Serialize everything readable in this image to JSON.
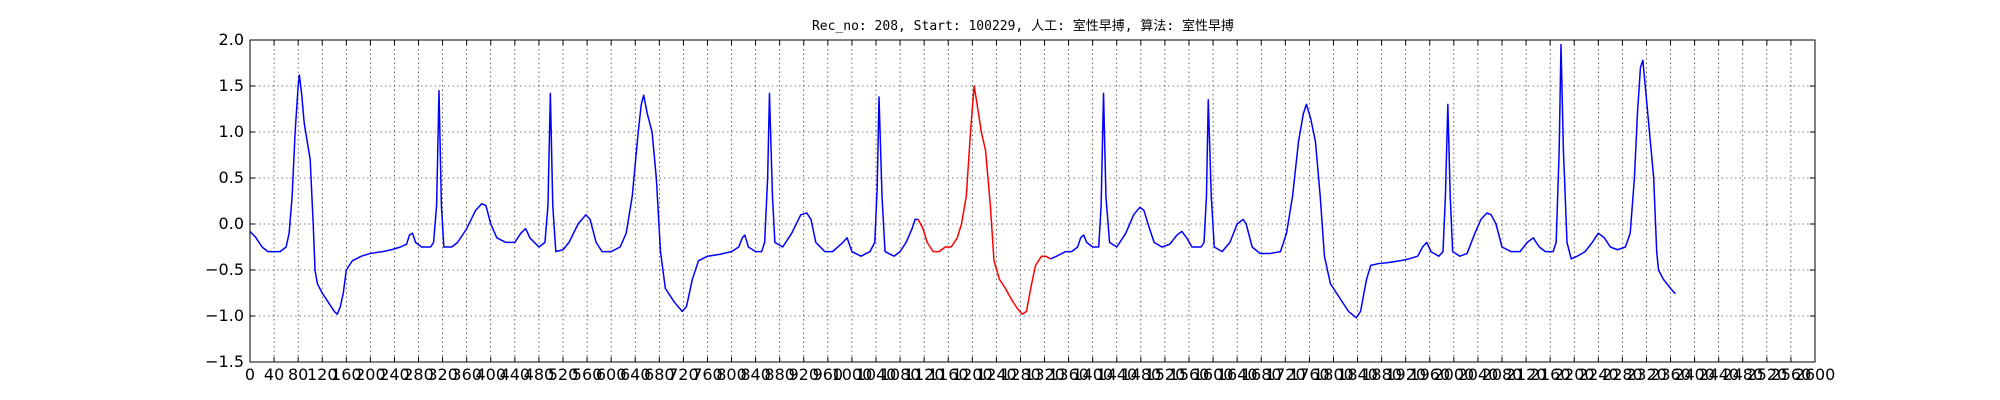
{
  "chart_data": {
    "type": "line",
    "title": "Rec_no: 208, Start: 100229, 人工: 室性早搏, 算法: 室性早搏",
    "xlabel": "",
    "ylabel": "",
    "xlim": [
      0,
      2600
    ],
    "ylim": [
      -1.5,
      2.0
    ],
    "grid": true,
    "x_ticks": [
      0,
      40,
      80,
      120,
      160,
      200,
      240,
      280,
      320,
      360,
      400,
      440,
      480,
      520,
      560,
      600,
      640,
      680,
      720,
      760,
      800,
      840,
      880,
      920,
      960,
      1000,
      1040,
      1080,
      1120,
      1160,
      1200,
      1240,
      1280,
      1320,
      1360,
      1400,
      1440,
      1480,
      1520,
      1560,
      1600,
      1640,
      1680,
      1720,
      1760,
      1800,
      1840,
      1880,
      1920,
      1960,
      2000,
      2040,
      2080,
      2120,
      2160,
      2200,
      2240,
      2280,
      2320,
      2360,
      2400,
      2440,
      2480,
      2520,
      2560,
      2600
    ],
    "x_tick_labels": [
      "0",
      "40",
      "80",
      "120",
      "160",
      "200",
      "240",
      "280",
      "320",
      "360",
      "400",
      "440",
      "480",
      "520",
      "560",
      "600",
      "640",
      "680",
      "720",
      "760",
      "800",
      "840",
      "880",
      "920",
      "960",
      "1000",
      "1040",
      "1080",
      "1120",
      "1160",
      "1200",
      "1240",
      "1280",
      "1320",
      "1360",
      "1400",
      "1440",
      "1480",
      "1520",
      "1560",
      "1600",
      "1640",
      "1680",
      "1720",
      "1760",
      "1800",
      "1840",
      "1880",
      "1920",
      "1960",
      "2000",
      "2040",
      "2080",
      "2120",
      "2160",
      "2200",
      "2240",
      "2280",
      "2320",
      "2360",
      "2400",
      "2440",
      "2480",
      "2520",
      "2560",
      "2600"
    ],
    "y_ticks": [
      -1.5,
      -1.0,
      -0.5,
      0.0,
      0.5,
      1.0,
      1.5,
      2.0
    ],
    "y_tick_labels": [
      "−1.5",
      "−1.0",
      "−0.5",
      "0.0",
      "0.5",
      "1.0",
      "1.5",
      "2.0"
    ],
    "series": [
      {
        "color": "#0000ff",
        "points": [
          [
            0,
            -0.08
          ],
          [
            10,
            -0.15
          ],
          [
            20,
            -0.25
          ],
          [
            30,
            -0.3
          ],
          [
            50,
            -0.3
          ],
          [
            60,
            -0.25
          ],
          [
            65,
            -0.1
          ],
          [
            70,
            0.3
          ],
          [
            75,
            1.0
          ],
          [
            80,
            1.5
          ],
          [
            82,
            1.62
          ],
          [
            86,
            1.4
          ],
          [
            90,
            1.1
          ],
          [
            95,
            0.9
          ],
          [
            100,
            0.7
          ],
          [
            105,
            0.0
          ],
          [
            108,
            -0.5
          ],
          [
            112,
            -0.65
          ],
          [
            120,
            -0.75
          ],
          [
            130,
            -0.85
          ],
          [
            140,
            -0.95
          ],
          [
            145,
            -0.98
          ],
          [
            150,
            -0.9
          ],
          [
            155,
            -0.75
          ],
          [
            160,
            -0.5
          ],
          [
            170,
            -0.4
          ],
          [
            185,
            -0.35
          ],
          [
            200,
            -0.32
          ],
          [
            220,
            -0.3
          ],
          [
            235,
            -0.28
          ],
          [
            250,
            -0.25
          ],
          [
            260,
            -0.22
          ],
          [
            265,
            -0.12
          ],
          [
            270,
            -0.1
          ],
          [
            275,
            -0.2
          ],
          [
            285,
            -0.25
          ],
          [
            300,
            -0.25
          ],
          [
            305,
            -0.2
          ],
          [
            310,
            0.2
          ],
          [
            314,
            1.45
          ],
          [
            318,
            0.2
          ],
          [
            322,
            -0.25
          ],
          [
            335,
            -0.25
          ],
          [
            345,
            -0.2
          ],
          [
            360,
            -0.05
          ],
          [
            375,
            0.15
          ],
          [
            385,
            0.22
          ],
          [
            392,
            0.2
          ],
          [
            400,
            0.0
          ],
          [
            410,
            -0.15
          ],
          [
            425,
            -0.2
          ],
          [
            440,
            -0.2
          ],
          [
            450,
            -0.1
          ],
          [
            458,
            -0.05
          ],
          [
            465,
            -0.15
          ],
          [
            480,
            -0.25
          ],
          [
            490,
            -0.2
          ],
          [
            495,
            0.2
          ],
          [
            499,
            1.42
          ],
          [
            503,
            0.2
          ],
          [
            508,
            -0.3
          ],
          [
            520,
            -0.28
          ],
          [
            530,
            -0.2
          ],
          [
            545,
            0.0
          ],
          [
            558,
            0.1
          ],
          [
            565,
            0.05
          ],
          [
            575,
            -0.2
          ],
          [
            585,
            -0.3
          ],
          [
            600,
            -0.3
          ],
          [
            615,
            -0.25
          ],
          [
            625,
            -0.1
          ],
          [
            635,
            0.3
          ],
          [
            645,
            1.0
          ],
          [
            650,
            1.3
          ],
          [
            654,
            1.4
          ],
          [
            660,
            1.2
          ],
          [
            668,
            1.0
          ],
          [
            675,
            0.5
          ],
          [
            682,
            -0.3
          ],
          [
            690,
            -0.7
          ],
          [
            705,
            -0.85
          ],
          [
            718,
            -0.95
          ],
          [
            725,
            -0.9
          ],
          [
            735,
            -0.6
          ],
          [
            745,
            -0.4
          ],
          [
            760,
            -0.35
          ],
          [
            780,
            -0.33
          ],
          [
            800,
            -0.3
          ],
          [
            812,
            -0.25
          ],
          [
            818,
            -0.15
          ],
          [
            822,
            -0.12
          ],
          [
            828,
            -0.25
          ],
          [
            840,
            -0.3
          ],
          [
            850,
            -0.3
          ],
          [
            855,
            -0.2
          ],
          [
            860,
            0.5
          ],
          [
            863,
            1.42
          ],
          [
            868,
            0.3
          ],
          [
            872,
            -0.2
          ],
          [
            885,
            -0.25
          ],
          [
            900,
            -0.1
          ],
          [
            915,
            0.1
          ],
          [
            925,
            0.12
          ],
          [
            932,
            0.05
          ],
          [
            940,
            -0.2
          ],
          [
            955,
            -0.3
          ],
          [
            968,
            -0.3
          ],
          [
            985,
            -0.2
          ],
          [
            992,
            -0.15
          ],
          [
            1000,
            -0.3
          ],
          [
            1015,
            -0.35
          ],
          [
            1030,
            -0.3
          ],
          [
            1038,
            -0.2
          ],
          [
            1042,
            0.4
          ],
          [
            1045,
            1.38
          ],
          [
            1050,
            0.3
          ],
          [
            1055,
            -0.3
          ],
          [
            1070,
            -0.35
          ],
          [
            1080,
            -0.3
          ],
          [
            1090,
            -0.2
          ],
          [
            1100,
            -0.05
          ],
          [
            1105,
            0.05
          ],
          [
            1110,
            0.05
          ]
        ]
      },
      {
        "color": "#ff0000",
        "points": [
          [
            1110,
            0.05
          ],
          [
            1118,
            -0.05
          ],
          [
            1125,
            -0.2
          ],
          [
            1135,
            -0.3
          ],
          [
            1145,
            -0.3
          ],
          [
            1155,
            -0.25
          ],
          [
            1165,
            -0.25
          ],
          [
            1175,
            -0.15
          ],
          [
            1182,
            0.0
          ],
          [
            1190,
            0.3
          ],
          [
            1197,
            1.0
          ],
          [
            1203,
            1.5
          ],
          [
            1208,
            1.3
          ],
          [
            1215,
            1.0
          ],
          [
            1222,
            0.8
          ],
          [
            1230,
            0.2
          ],
          [
            1236,
            -0.4
          ],
          [
            1245,
            -0.6
          ],
          [
            1255,
            -0.7
          ],
          [
            1265,
            -0.82
          ],
          [
            1275,
            -0.92
          ],
          [
            1283,
            -0.98
          ],
          [
            1290,
            -0.95
          ],
          [
            1297,
            -0.7
          ],
          [
            1305,
            -0.45
          ],
          [
            1315,
            -0.35
          ],
          [
            1322,
            -0.35
          ],
          [
            1330,
            -0.38
          ]
        ]
      },
      {
        "color": "#0000ff",
        "points": [
          [
            1330,
            -0.38
          ],
          [
            1340,
            -0.35
          ],
          [
            1355,
            -0.3
          ],
          [
            1365,
            -0.3
          ],
          [
            1375,
            -0.25
          ],
          [
            1380,
            -0.15
          ],
          [
            1385,
            -0.12
          ],
          [
            1390,
            -0.2
          ],
          [
            1400,
            -0.25
          ],
          [
            1410,
            -0.25
          ],
          [
            1414,
            0.2
          ],
          [
            1418,
            1.42
          ],
          [
            1422,
            0.3
          ],
          [
            1428,
            -0.2
          ],
          [
            1440,
            -0.25
          ],
          [
            1455,
            -0.1
          ],
          [
            1468,
            0.1
          ],
          [
            1478,
            0.18
          ],
          [
            1485,
            0.15
          ],
          [
            1492,
            0.0
          ],
          [
            1502,
            -0.2
          ],
          [
            1515,
            -0.25
          ],
          [
            1528,
            -0.22
          ],
          [
            1540,
            -0.12
          ],
          [
            1548,
            -0.08
          ],
          [
            1556,
            -0.15
          ],
          [
            1565,
            -0.25
          ],
          [
            1580,
            -0.25
          ],
          [
            1585,
            -0.2
          ],
          [
            1589,
            0.3
          ],
          [
            1592,
            1.35
          ],
          [
            1597,
            0.3
          ],
          [
            1602,
            -0.25
          ],
          [
            1615,
            -0.3
          ],
          [
            1628,
            -0.2
          ],
          [
            1640,
            0.0
          ],
          [
            1650,
            0.05
          ],
          [
            1655,
            0.0
          ],
          [
            1665,
            -0.25
          ],
          [
            1678,
            -0.32
          ],
          [
            1695,
            -0.32
          ],
          [
            1712,
            -0.3
          ],
          [
            1722,
            -0.1
          ],
          [
            1732,
            0.3
          ],
          [
            1742,
            0.9
          ],
          [
            1750,
            1.2
          ],
          [
            1755,
            1.3
          ],
          [
            1762,
            1.15
          ],
          [
            1770,
            0.9
          ],
          [
            1778,
            0.3
          ],
          [
            1785,
            -0.35
          ],
          [
            1795,
            -0.65
          ],
          [
            1810,
            -0.8
          ],
          [
            1825,
            -0.95
          ],
          [
            1838,
            -1.02
          ],
          [
            1845,
            -0.95
          ],
          [
            1855,
            -0.6
          ],
          [
            1862,
            -0.45
          ],
          [
            1875,
            -0.43
          ],
          [
            1890,
            -0.42
          ],
          [
            1910,
            -0.4
          ],
          [
            1925,
            -0.38
          ],
          [
            1940,
            -0.35
          ],
          [
            1948,
            -0.25
          ],
          [
            1955,
            -0.2
          ],
          [
            1962,
            -0.3
          ],
          [
            1975,
            -0.35
          ],
          [
            1982,
            -0.3
          ],
          [
            1986,
            0.3
          ],
          [
            1990,
            1.3
          ],
          [
            1994,
            0.3
          ],
          [
            1998,
            -0.3
          ],
          [
            2010,
            -0.35
          ],
          [
            2022,
            -0.32
          ],
          [
            2035,
            -0.1
          ],
          [
            2045,
            0.05
          ],
          [
            2055,
            0.12
          ],
          [
            2062,
            0.1
          ],
          [
            2070,
            0.0
          ],
          [
            2080,
            -0.25
          ],
          [
            2095,
            -0.3
          ],
          [
            2110,
            -0.3
          ],
          [
            2122,
            -0.2
          ],
          [
            2132,
            -0.15
          ],
          [
            2142,
            -0.25
          ],
          [
            2152,
            -0.3
          ],
          [
            2165,
            -0.3
          ],
          [
            2170,
            -0.2
          ],
          [
            2175,
            0.8
          ],
          [
            2178,
            1.95
          ],
          [
            2182,
            0.8
          ],
          [
            2188,
            -0.2
          ],
          [
            2195,
            -0.38
          ],
          [
            2205,
            -0.35
          ],
          [
            2218,
            -0.3
          ],
          [
            2230,
            -0.2
          ],
          [
            2240,
            -0.1
          ],
          [
            2250,
            -0.15
          ],
          [
            2260,
            -0.25
          ],
          [
            2272,
            -0.28
          ],
          [
            2285,
            -0.25
          ],
          [
            2293,
            -0.1
          ],
          [
            2300,
            0.5
          ],
          [
            2305,
            1.2
          ],
          [
            2310,
            1.7
          ],
          [
            2314,
            1.78
          ],
          [
            2318,
            1.5
          ],
          [
            2325,
            1.0
          ],
          [
            2332,
            0.5
          ],
          [
            2337,
            -0.3
          ],
          [
            2340,
            -0.5
          ],
          [
            2348,
            -0.6
          ],
          [
            2360,
            -0.7
          ],
          [
            2368,
            -0.76
          ]
        ]
      }
    ]
  }
}
